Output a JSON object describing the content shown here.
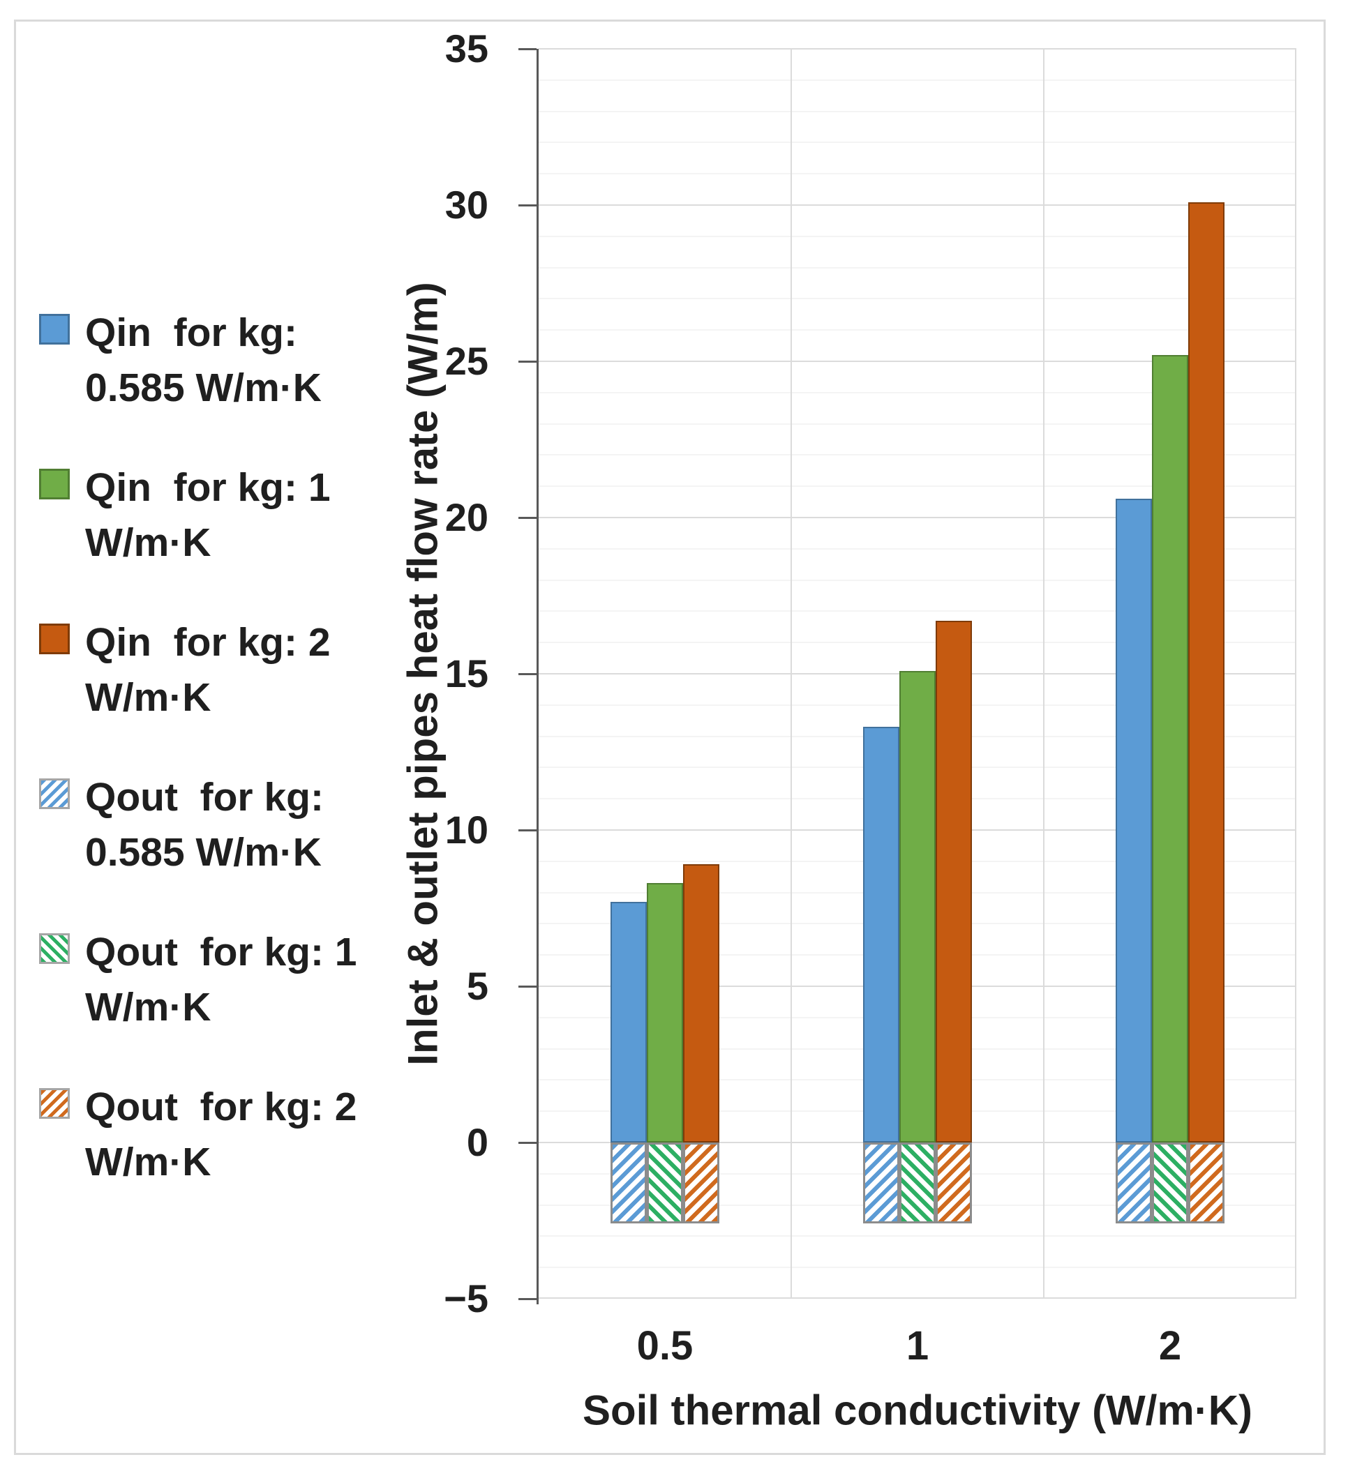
{
  "figure": {
    "background": "#FFFFFF",
    "border_color": "#DADADA"
  },
  "colors": {
    "blue": "#5B9BD5",
    "blue_edge": "#41719C",
    "green": "#70AD47",
    "green_edge": "#507E32",
    "orange": "#C55A11",
    "orange_edge": "#7F3B08",
    "hatch_blue": "#5B9BD5",
    "hatch_green": "#2DAF63",
    "hatch_orange": "#D06A1E",
    "hatch_border": "#8C8C8C",
    "grid_major": "#DBDBDB",
    "grid_minor": "#F4F4F4",
    "axis": "#595959",
    "text": "#1F1F1F"
  },
  "legend": {
    "items": [
      {
        "line1": "Qin  for kg:",
        "line2": "0.585 W/m·K",
        "series": 0
      },
      {
        "line1": "Qin  for kg: 1",
        "line2": "W/m·K",
        "series": 1
      },
      {
        "line1": "Qin  for kg: 2",
        "line2": "W/m·K",
        "series": 2
      },
      {
        "line1": "Qout  for kg:",
        "line2": "0.585 W/m·K",
        "series": 3
      },
      {
        "line1": "Qout  for kg: 1",
        "line2": "W/m·K",
        "series": 4
      },
      {
        "line1": "Qout  for kg: 2",
        "line2": "W/m·K",
        "series": 5
      }
    ]
  },
  "y_axis": {
    "title": "Inlet & outlet pipes heat flow rate (W/m)",
    "min": -5,
    "max": 35,
    "major_step": 5,
    "minor_step": 1,
    "tick_values": [
      35,
      30,
      25,
      20,
      15,
      10,
      5,
      0,
      -5
    ],
    "tick_labels": [
      "35",
      "30",
      "25",
      "20",
      "15",
      "10",
      "5",
      "0",
      "−5"
    ]
  },
  "x_axis": {
    "title": "Soil thermal conductivity (W/m·K)",
    "categories": [
      "0.5",
      "1",
      "2"
    ]
  },
  "chart_data": {
    "type": "bar",
    "categories": [
      "0.5",
      "1",
      "2"
    ],
    "xlabel": "Soil thermal conductivity (W/m·K)",
    "ylabel": "Inlet & outlet pipes heat flow rate (W/m)",
    "ylim": [
      -5,
      35
    ],
    "grid": true,
    "legend_position": "left",
    "series": [
      {
        "name": "Qin for kg: 0.585 W/m·K",
        "values": [
          7.7,
          13.3,
          20.6
        ],
        "color": "#5B9BD5",
        "edge": "#41719C",
        "pattern": "solid",
        "slot": 0
      },
      {
        "name": "Qin for kg: 1 W/m·K",
        "values": [
          8.3,
          15.1,
          25.2
        ],
        "color": "#70AD47",
        "edge": "#507E32",
        "pattern": "solid",
        "slot": 1
      },
      {
        "name": "Qin for kg: 2 W/m·K",
        "values": [
          8.9,
          16.7,
          30.1
        ],
        "color": "#C55A11",
        "edge": "#7F3B08",
        "pattern": "solid",
        "slot": 2
      },
      {
        "name": "Qout for kg: 0.585 W/m·K",
        "values": [
          -2.6,
          -2.6,
          -2.6
        ],
        "color": "#5B9BD5",
        "edge": "#8C8C8C",
        "pattern": "hatch-down",
        "slot": 0
      },
      {
        "name": "Qout for kg: 1 W/m·K",
        "values": [
          -2.6,
          -2.6,
          -2.6
        ],
        "color": "#2DAF63",
        "edge": "#8C8C8C",
        "pattern": "hatch-up",
        "slot": 1
      },
      {
        "name": "Qout for kg: 2 W/m·K",
        "values": [
          -2.6,
          -2.6,
          -2.6
        ],
        "color": "#D06A1E",
        "edge": "#8C8C8C",
        "pattern": "hatch-down",
        "slot": 2
      }
    ]
  }
}
